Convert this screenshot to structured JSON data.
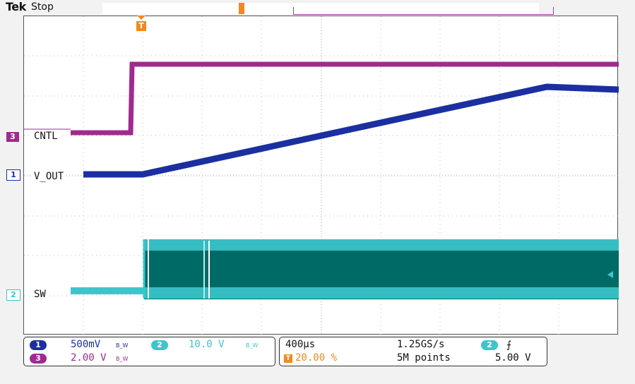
{
  "header": {
    "brand": "Tek",
    "status": "Stop"
  },
  "trigger_marker": {
    "label": "T"
  },
  "channels": [
    {
      "id": "1",
      "label": "V_OUT",
      "color": "#1c2fa0",
      "scale": "500mV",
      "bw": "B_W"
    },
    {
      "id": "2",
      "label": "SW",
      "color": "#3cc6cc",
      "scale": "10.0 V",
      "bw": "B_W"
    },
    {
      "id": "3",
      "label": "CNTL",
      "color": "#a02a8e",
      "scale": "2.00 V",
      "bw": "B_W"
    }
  ],
  "timebase": {
    "per_div": "400µs",
    "trigger_position": "20.00 %",
    "sample_rate": "1.25GS/s",
    "record_length": "5M points"
  },
  "trigger": {
    "source": "2",
    "slope": "rising-edge-icon",
    "level": "5.00 V"
  },
  "colors": {
    "grid": "#bfbfbf",
    "ch1": "#1c2fa0",
    "ch2": "#3cc6cc",
    "ch2_fill": "#006b66",
    "ch3": "#a02a8e",
    "trigger": "#f08a1c"
  }
}
